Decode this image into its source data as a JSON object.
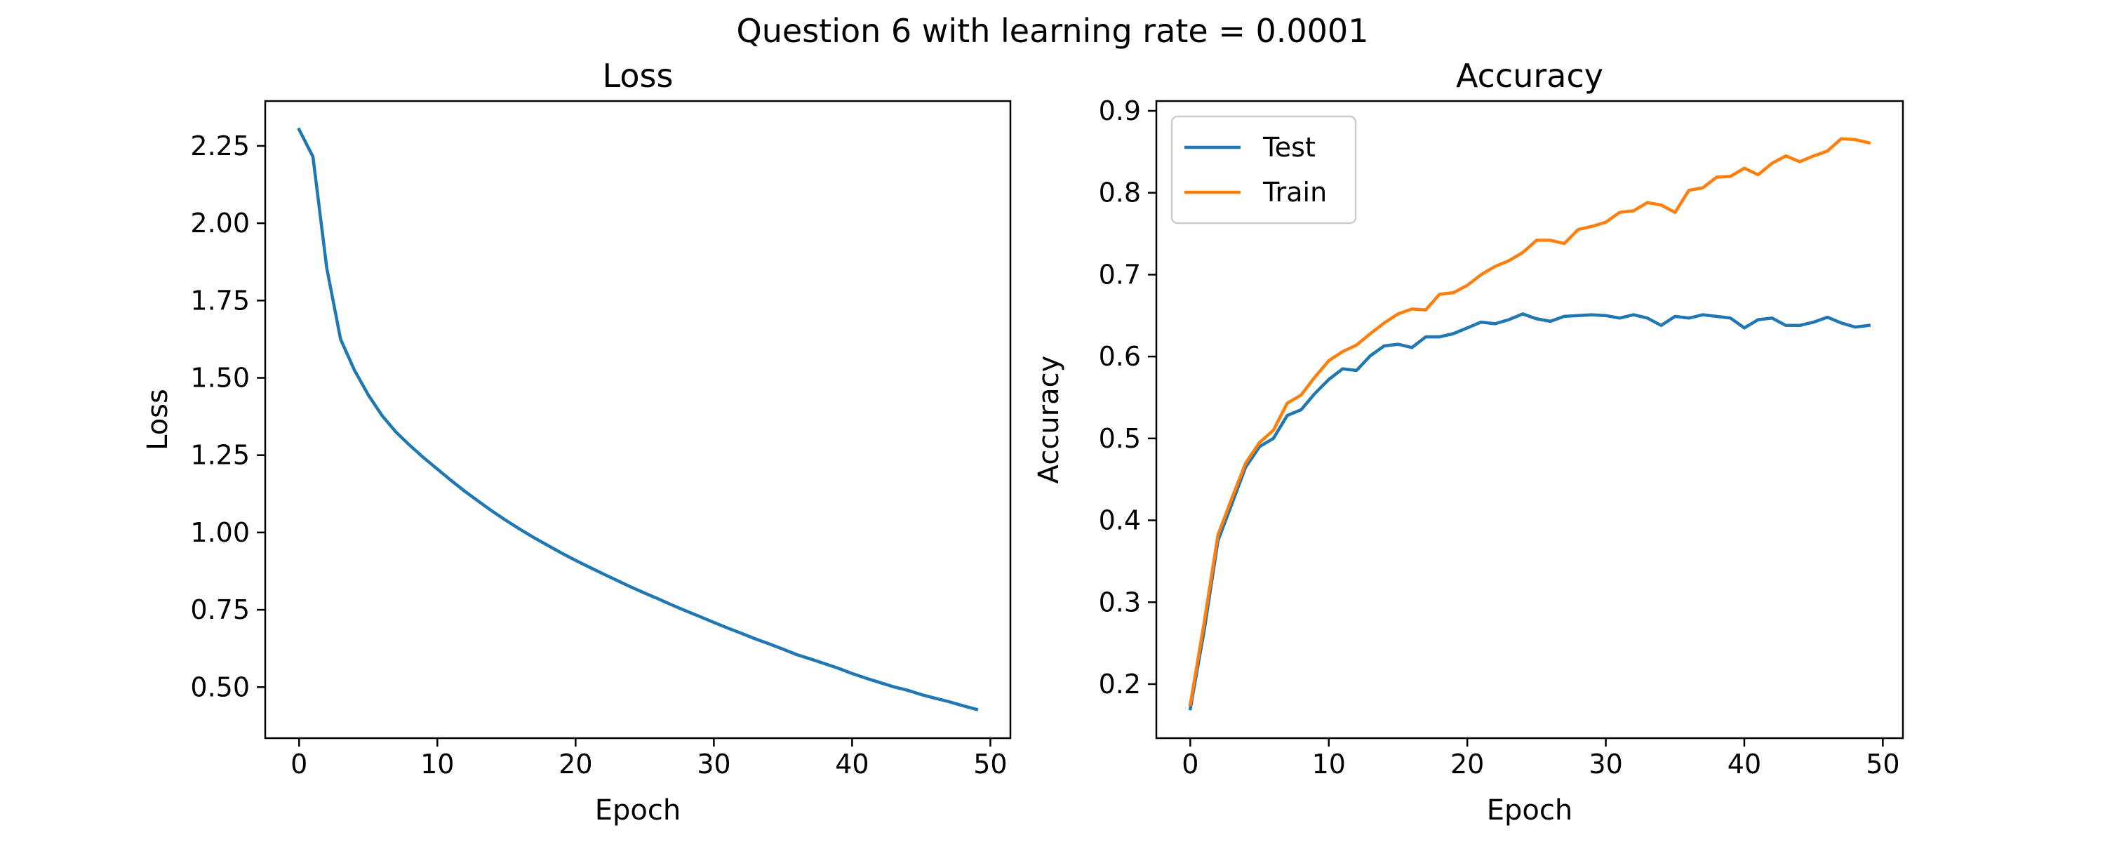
{
  "figure": {
    "suptitle": "Question 6 with learning rate = 0.0001"
  },
  "chart_data": [
    {
      "type": "line",
      "title": "Loss",
      "xlabel": "Epoch",
      "ylabel": "Loss",
      "xlim": [
        -2.45,
        51.45
      ],
      "ylim": [
        0.335,
        2.395
      ],
      "xticks": [
        0,
        10,
        20,
        30,
        40,
        50
      ],
      "xtick_labels": [
        "0",
        "10",
        "20",
        "30",
        "40",
        "50"
      ],
      "yticks": [
        0.5,
        0.75,
        1.0,
        1.25,
        1.5,
        1.75,
        2.0,
        2.25
      ],
      "ytick_labels": [
        "0.50",
        "0.75",
        "1.00",
        "1.25",
        "1.50",
        "1.75",
        "2.00",
        "2.25"
      ],
      "grid": false,
      "legend": null,
      "x": [
        0,
        1,
        2,
        3,
        4,
        5,
        6,
        7,
        8,
        9,
        10,
        11,
        12,
        13,
        14,
        15,
        16,
        17,
        18,
        19,
        20,
        21,
        22,
        23,
        24,
        25,
        26,
        27,
        28,
        29,
        30,
        31,
        32,
        33,
        34,
        35,
        36,
        37,
        38,
        39,
        40,
        41,
        42,
        43,
        44,
        45,
        46,
        47,
        48,
        49
      ],
      "series": [
        {
          "color": "#1f77b4",
          "values": [
            2.303,
            2.215,
            1.855,
            1.625,
            1.525,
            1.445,
            1.378,
            1.325,
            1.282,
            1.242,
            1.205,
            1.168,
            1.133,
            1.1,
            1.068,
            1.038,
            1.01,
            0.983,
            0.958,
            0.933,
            0.91,
            0.888,
            0.866,
            0.845,
            0.824,
            0.804,
            0.785,
            0.765,
            0.746,
            0.728,
            0.709,
            0.691,
            0.674,
            0.656,
            0.64,
            0.623,
            0.605,
            0.591,
            0.576,
            0.561,
            0.544,
            0.529,
            0.515,
            0.501,
            0.49,
            0.476,
            0.464,
            0.453,
            0.44,
            0.428
          ]
        }
      ]
    },
    {
      "type": "line",
      "title": "Accuracy",
      "xlabel": "Epoch",
      "ylabel": "Accuracy",
      "xlim": [
        -2.45,
        51.45
      ],
      "ylim": [
        0.134,
        0.912
      ],
      "xticks": [
        0,
        10,
        20,
        30,
        40,
        50
      ],
      "xtick_labels": [
        "0",
        "10",
        "20",
        "30",
        "40",
        "50"
      ],
      "yticks": [
        0.2,
        0.3,
        0.4,
        0.5,
        0.6,
        0.7,
        0.8,
        0.9
      ],
      "ytick_labels": [
        "0.2",
        "0.3",
        "0.4",
        "0.5",
        "0.6",
        "0.7",
        "0.8",
        "0.9"
      ],
      "grid": false,
      "legend": "top-left",
      "x": [
        0,
        1,
        2,
        3,
        4,
        5,
        6,
        7,
        8,
        9,
        10,
        11,
        12,
        13,
        14,
        15,
        16,
        17,
        18,
        19,
        20,
        21,
        22,
        23,
        24,
        25,
        26,
        27,
        28,
        29,
        30,
        31,
        32,
        33,
        34,
        35,
        36,
        37,
        38,
        39,
        40,
        41,
        42,
        43,
        44,
        45,
        46,
        47,
        48,
        49
      ],
      "series": [
        {
          "name": "Test",
          "color": "#1f77b4",
          "values": [
            0.17,
            0.265,
            0.375,
            0.42,
            0.465,
            0.49,
            0.5,
            0.528,
            0.535,
            0.555,
            0.572,
            0.585,
            0.583,
            0.601,
            0.613,
            0.615,
            0.611,
            0.624,
            0.624,
            0.628,
            0.635,
            0.642,
            0.64,
            0.645,
            0.652,
            0.646,
            0.643,
            0.649,
            0.65,
            0.651,
            0.65,
            0.647,
            0.651,
            0.647,
            0.638,
            0.649,
            0.647,
            0.651,
            0.649,
            0.647,
            0.635,
            0.645,
            0.647,
            0.638,
            0.638,
            0.642,
            0.648,
            0.641,
            0.636,
            0.638
          ]
        },
        {
          "name": "Train",
          "color": "#ff7f0e",
          "values": [
            0.175,
            0.275,
            0.382,
            0.427,
            0.47,
            0.495,
            0.51,
            0.543,
            0.553,
            0.575,
            0.595,
            0.606,
            0.614,
            0.628,
            0.641,
            0.652,
            0.658,
            0.657,
            0.676,
            0.678,
            0.687,
            0.7,
            0.71,
            0.717,
            0.727,
            0.742,
            0.742,
            0.738,
            0.755,
            0.759,
            0.764,
            0.776,
            0.778,
            0.788,
            0.785,
            0.776,
            0.803,
            0.806,
            0.819,
            0.82,
            0.83,
            0.822,
            0.836,
            0.845,
            0.838,
            0.845,
            0.851,
            0.866,
            0.865,
            0.861
          ]
        }
      ]
    }
  ]
}
